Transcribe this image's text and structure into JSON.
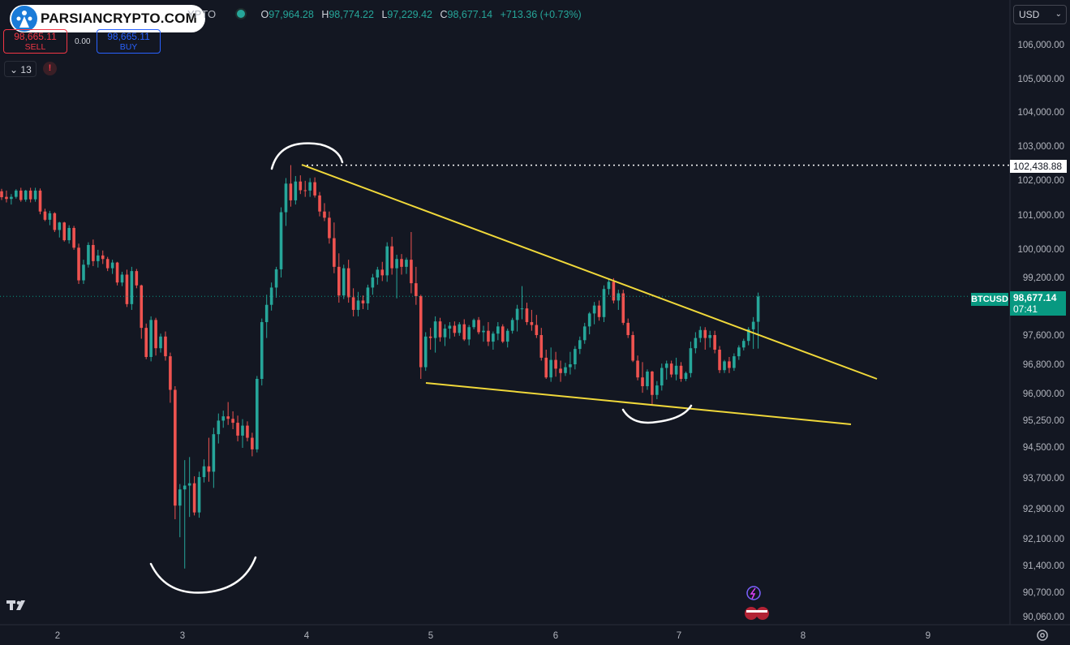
{
  "header": {
    "brand": "PARSIANCRYPTO.COM",
    "symbol_fragment": "YPTO",
    "ohlc": [
      {
        "k": "O",
        "v": "97,964.28"
      },
      {
        "k": "H",
        "v": "98,774.22"
      },
      {
        "k": "L",
        "v": "97,229.42"
      },
      {
        "k": "C",
        "v": "98,677.14"
      }
    ],
    "change": "+713.36 (+0.73%)"
  },
  "trade": {
    "sell_price": "98,665.11",
    "sell_label": "SELL",
    "spread": "0.00",
    "buy_price": "98,665.11",
    "buy_label": "BUY"
  },
  "indicators": {
    "count": "13",
    "warning": "!"
  },
  "currency": {
    "selected": "USD"
  },
  "price_axis": {
    "labels": [
      "106,000.00",
      "105,000.00",
      "104,000.00",
      "103,000.00",
      "102,000.00",
      "101,000.00",
      "100,000.00",
      "99,200.00",
      "97,600.00",
      "96,800.00",
      "96,000.00",
      "95,250.00",
      "94,500.00",
      "93,700.00",
      "92,900.00",
      "92,100.00",
      "91,400.00",
      "90,700.00",
      "90,060.00"
    ],
    "reference_price": "102,438.88",
    "current_price": "98,677.14",
    "countdown": "07:41",
    "symbol": "BTCUSD"
  },
  "time_axis": {
    "labels": [
      "2",
      "3",
      "4",
      "5",
      "6",
      "7",
      "8",
      "9"
    ]
  },
  "colors": {
    "background": "#131722",
    "up": "#26a69a",
    "down": "#ef5350",
    "trendline": "#f0d83a",
    "annotation": "#ffffff"
  },
  "chart_data": {
    "type": "candlestick",
    "symbol": "BTCUSD",
    "x_labels": [
      "2",
      "3",
      "4",
      "5",
      "6",
      "7",
      "8",
      "9"
    ],
    "ylim": [
      90060,
      106500
    ],
    "reference_line": 102438.88,
    "last_price": 98677.14,
    "candles": [
      [
        101680,
        101750,
        101430,
        101510
      ],
      [
        101520,
        101700,
        101360,
        101460
      ],
      [
        101460,
        101600,
        101300,
        101520
      ],
      [
        101520,
        101740,
        101470,
        101700
      ],
      [
        101700,
        101780,
        101380,
        101430
      ],
      [
        101440,
        101720,
        101380,
        101700
      ],
      [
        101700,
        101780,
        101360,
        101450
      ],
      [
        101450,
        101780,
        101380,
        101700
      ],
      [
        101700,
        101760,
        101020,
        101100
      ],
      [
        101100,
        101180,
        100820,
        100860
      ],
      [
        100860,
        101120,
        100700,
        101050
      ],
      [
        101050,
        101080,
        100500,
        100560
      ],
      [
        100560,
        100800,
        100340,
        100780
      ],
      [
        100780,
        100800,
        100220,
        100260
      ],
      [
        100260,
        100700,
        100160,
        100620
      ],
      [
        100620,
        100680,
        99980,
        100040
      ],
      [
        100040,
        100160,
        99020,
        99120
      ],
      [
        99120,
        99700,
        99020,
        99560
      ],
      [
        99560,
        100200,
        99480,
        100120
      ],
      [
        100120,
        100280,
        99520,
        99660
      ],
      [
        99660,
        99980,
        99480,
        99820
      ],
      [
        99820,
        99960,
        99580,
        99720
      ],
      [
        99720,
        99780,
        99380,
        99460
      ],
      [
        99460,
        99700,
        99300,
        99620
      ],
      [
        99620,
        99640,
        98980,
        99060
      ],
      [
        99060,
        99360,
        98960,
        99280
      ],
      [
        99280,
        99420,
        98380,
        98460
      ],
      [
        98460,
        99500,
        98300,
        99380
      ],
      [
        99380,
        99440,
        98900,
        98980
      ],
      [
        98980,
        99000,
        97500,
        97800
      ],
      [
        97800,
        97920,
        96940,
        97000
      ],
      [
        97000,
        98120,
        96880,
        98020
      ],
      [
        98020,
        98080,
        97040,
        97240
      ],
      [
        97240,
        97640,
        97120,
        97560
      ],
      [
        97560,
        97700,
        96900,
        97020
      ],
      [
        97020,
        97120,
        95740,
        96100
      ],
      [
        96100,
        96200,
        92620,
        92980
      ],
      [
        92980,
        93540,
        92140,
        93400
      ],
      [
        93400,
        94160,
        91320,
        93500
      ],
      [
        93500,
        94240,
        92680,
        93560
      ],
      [
        93560,
        93740,
        92720,
        92800
      ],
      [
        92800,
        93860,
        92660,
        93720
      ],
      [
        93720,
        94180,
        93580,
        94000
      ],
      [
        94000,
        94760,
        93600,
        93860
      ],
      [
        93860,
        95040,
        93440,
        94860
      ],
      [
        94860,
        95440,
        94600,
        95240
      ],
      [
        95240,
        95520,
        95040,
        95360
      ],
      [
        95360,
        95760,
        95120,
        95290
      ],
      [
        95290,
        95500,
        95000,
        95180
      ],
      [
        95180,
        95380,
        94660,
        94820
      ],
      [
        94820,
        95280,
        94480,
        95100
      ],
      [
        95100,
        95220,
        94660,
        94760
      ],
      [
        94760,
        94900,
        94260,
        94440
      ],
      [
        94440,
        96480,
        94360,
        96400
      ],
      [
        96400,
        98060,
        96220,
        97960
      ],
      [
        97960,
        98720,
        97520,
        98440
      ],
      [
        98440,
        99060,
        98280,
        98920
      ],
      [
        98920,
        99500,
        98640,
        99430
      ],
      [
        99430,
        101220,
        99200,
        101080
      ],
      [
        101080,
        102060,
        100680,
        101900
      ],
      [
        101900,
        102440,
        101240,
        101420
      ],
      [
        101420,
        102120,
        101300,
        101960
      ],
      [
        101960,
        102140,
        101600,
        101710
      ],
      [
        101710,
        101980,
        101520,
        101700
      ],
      [
        101700,
        102060,
        101520,
        101940
      ],
      [
        101940,
        102080,
        101500,
        101560
      ],
      [
        101560,
        101660,
        100960,
        101100
      ],
      [
        101100,
        101340,
        100820,
        100920
      ],
      [
        100920,
        101100,
        100160,
        100320
      ],
      [
        100320,
        100780,
        99320,
        99500
      ],
      [
        99500,
        99880,
        98500,
        98700
      ],
      [
        98700,
        99560,
        98600,
        99460
      ],
      [
        99460,
        99700,
        98500,
        98650
      ],
      [
        98650,
        98900,
        98120,
        98300
      ],
      [
        98300,
        98800,
        98120,
        98560
      ],
      [
        98560,
        98700,
        98320,
        98480
      ],
      [
        98480,
        99000,
        98300,
        98920
      ],
      [
        98920,
        99300,
        98720,
        99200
      ],
      [
        99200,
        99500,
        99000,
        99420
      ],
      [
        99420,
        99640,
        99100,
        99260
      ],
      [
        99260,
        100200,
        99080,
        100080
      ],
      [
        100080,
        100360,
        99280,
        99460
      ],
      [
        99460,
        99840,
        98620,
        99720
      ],
      [
        99720,
        99860,
        99280,
        99500
      ],
      [
        99500,
        99760,
        99300,
        99700
      ],
      [
        99700,
        100500,
        98760,
        99040
      ],
      [
        99040,
        99500,
        98440,
        98680
      ],
      [
        98680,
        98720,
        96400,
        96720
      ],
      [
        96720,
        97680,
        96620,
        97560
      ],
      [
        97560,
        97800,
        97200,
        97520
      ],
      [
        97520,
        98120,
        97120,
        97980
      ],
      [
        97980,
        98080,
        97420,
        97540
      ],
      [
        97540,
        97900,
        97300,
        97780
      ],
      [
        97780,
        97960,
        97500,
        97860
      ],
      [
        97860,
        97980,
        97560,
        97660
      ],
      [
        97660,
        97960,
        97580,
        97900
      ],
      [
        97900,
        98040,
        97440,
        97480
      ],
      [
        97480,
        97880,
        97320,
        97820
      ],
      [
        97820,
        98060,
        97760,
        98020
      ],
      [
        98020,
        98100,
        97620,
        97680
      ],
      [
        97680,
        97860,
        97420,
        97720
      ],
      [
        97720,
        97960,
        97300,
        97420
      ],
      [
        97420,
        97700,
        97200,
        97640
      ],
      [
        97640,
        97960,
        97460,
        97840
      ],
      [
        97840,
        97900,
        97380,
        97420
      ],
      [
        97420,
        97780,
        97260,
        97720
      ],
      [
        97720,
        98080,
        97640,
        98020
      ],
      [
        98020,
        98440,
        97700,
        98330
      ],
      [
        98330,
        98960,
        98040,
        98340
      ],
      [
        98340,
        98500,
        97880,
        97960
      ],
      [
        97960,
        98300,
        97720,
        97880
      ],
      [
        97880,
        98160,
        97520,
        97600
      ],
      [
        97600,
        97800,
        96900,
        96980
      ],
      [
        96980,
        97200,
        96400,
        96440
      ],
      [
        96440,
        97260,
        96320,
        96920
      ],
      [
        96920,
        97140,
        96460,
        96680
      ],
      [
        96680,
        96900,
        96320,
        96560
      ],
      [
        96560,
        96840,
        96480,
        96720
      ],
      [
        96720,
        97140,
        96520,
        96800
      ],
      [
        96800,
        97300,
        96660,
        97220
      ],
      [
        97220,
        97560,
        97080,
        97460
      ],
      [
        97460,
        97940,
        97360,
        97840
      ],
      [
        97840,
        98240,
        97620,
        98200
      ],
      [
        98200,
        98520,
        97900,
        98420
      ],
      [
        98420,
        98560,
        98000,
        98100
      ],
      [
        98100,
        98980,
        97960,
        98880
      ],
      [
        98880,
        99160,
        98720,
        99080
      ],
      [
        99080,
        99180,
        98480,
        98560
      ],
      [
        98560,
        98860,
        98300,
        98760
      ],
      [
        98760,
        98860,
        97880,
        97940
      ],
      [
        97940,
        98060,
        97520,
        97600
      ],
      [
        97600,
        97700,
        96860,
        96900
      ],
      [
        96900,
        97040,
        96360,
        96440
      ],
      [
        96440,
        96860,
        96020,
        96200
      ],
      [
        96200,
        96660,
        96100,
        96600
      ],
      [
        96600,
        96620,
        95700,
        95960
      ],
      [
        95960,
        96340,
        95840,
        96220
      ],
      [
        96220,
        96820,
        96080,
        96700
      ],
      [
        96700,
        96900,
        96380,
        96820
      ],
      [
        96820,
        96900,
        96440,
        96520
      ],
      [
        96520,
        96980,
        96360,
        96760
      ],
      [
        96760,
        96860,
        96320,
        96400
      ],
      [
        96400,
        96600,
        96340,
        96560
      ],
      [
        96560,
        97420,
        96440,
        97240
      ],
      [
        97240,
        97680,
        97100,
        97520
      ],
      [
        97520,
        97840,
        97400,
        97740
      ],
      [
        97740,
        97820,
        97200,
        97520
      ],
      [
        97520,
        97720,
        97260,
        97600
      ],
      [
        97600,
        97720,
        97100,
        97200
      ],
      [
        97200,
        97300,
        96560,
        96640
      ],
      [
        96640,
        96920,
        96560,
        96880
      ],
      [
        96880,
        97000,
        96560,
        96700
      ],
      [
        96700,
        97100,
        96620,
        97020
      ],
      [
        97020,
        97320,
        96920,
        97260
      ],
      [
        97260,
        97500,
        97180,
        97440
      ],
      [
        97440,
        97820,
        97320,
        97760
      ],
      [
        97760,
        98100,
        97220,
        97970
      ],
      [
        97970,
        98780,
        97230,
        98670
      ]
    ]
  }
}
